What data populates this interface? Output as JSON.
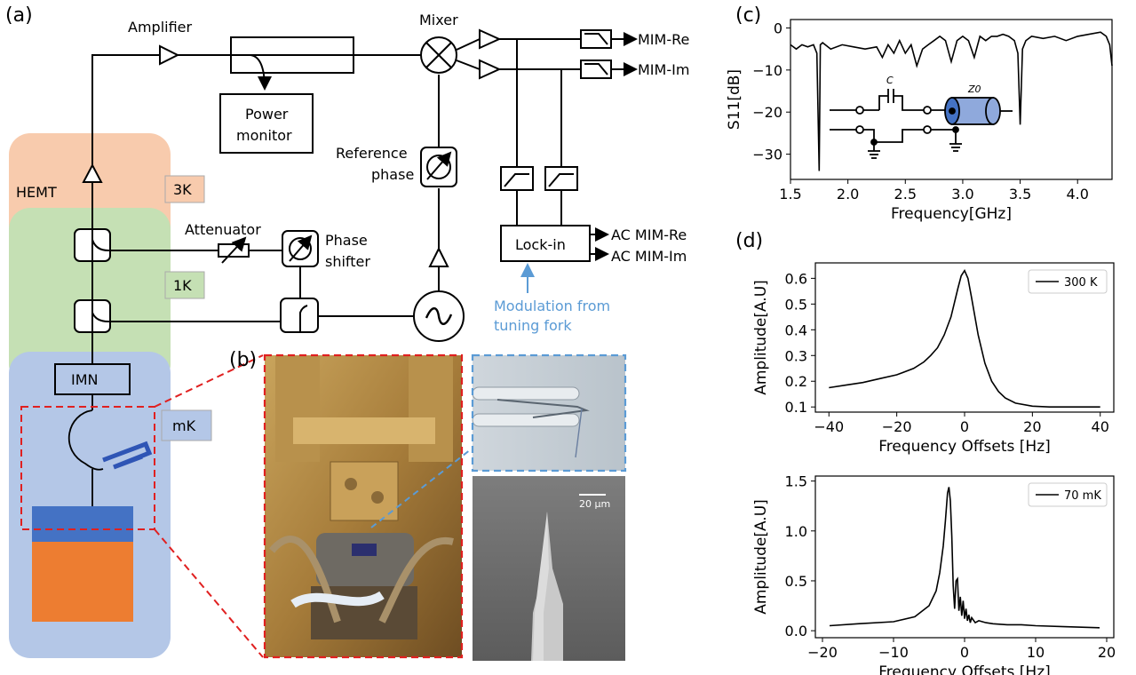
{
  "panels": {
    "a": "(a)",
    "b": "(b)",
    "c": "(c)",
    "d": "(d)"
  },
  "schematic": {
    "amplifier": "Amplifier",
    "mixer": "Mixer",
    "power_monitor_1": "Power",
    "power_monitor_2": "monitor",
    "reference_phase_1": "Reference",
    "reference_phase_2": "phase",
    "attenuator": "Attenuator",
    "phase_shifter_1": "Phase",
    "phase_shifter_2": "shifter",
    "lockin": "Lock-in",
    "modulation_1": "Modulation from",
    "modulation_2": "tuning fork",
    "hemt": "HEMT",
    "imn": "IMN",
    "out_re": "MIM-Re",
    "out_im": "MIM-Im",
    "ac_re": "AC MIM-Re",
    "ac_im": "AC MIM-Im",
    "temp_3k": "3K",
    "temp_1k": "1K",
    "temp_mk": "mK",
    "colors": {
      "stage_3k": "#f8cbad",
      "stage_1k": "#c5e0b4",
      "stage_mk": "#b4c7e7",
      "sample_top": "#4472c4",
      "sample_bottom": "#ed7d31",
      "red_dash": "#e02020",
      "blue_dash": "#5b9bd5"
    }
  },
  "photos": {
    "scale_bar": "20 μm"
  },
  "chart_data": [
    {
      "type": "line",
      "panel": "c",
      "xlabel": "Frequency[GHz]",
      "ylabel": "S11[dB]",
      "xlim": [
        1.5,
        4.3
      ],
      "ylim": [
        -36,
        2
      ],
      "xticks": [
        "1.5",
        "2.0",
        "2.5",
        "3.0",
        "3.5",
        "4.0"
      ],
      "yticks": [
        "0",
        "−10",
        "−20",
        "−30"
      ],
      "circuit_labels": {
        "c": "C",
        "z0": "Z0"
      },
      "series": [
        {
          "x": [
            1.5,
            1.55,
            1.6,
            1.65,
            1.7,
            1.73,
            1.75,
            1.76,
            1.78,
            1.85,
            1.95,
            2.05,
            2.15,
            2.25,
            2.3,
            2.35,
            2.4,
            2.45,
            2.5,
            2.55,
            2.6,
            2.65,
            2.7,
            2.75,
            2.8,
            2.85,
            2.9,
            2.95,
            3.0,
            3.05,
            3.1,
            3.15,
            3.2,
            3.25,
            3.3,
            3.35,
            3.4,
            3.45,
            3.48,
            3.5,
            3.52,
            3.55,
            3.6,
            3.7,
            3.8,
            3.9,
            4.0,
            4.1,
            4.2,
            4.25,
            4.28,
            4.3
          ],
          "y": [
            -4,
            -5,
            -4,
            -4.5,
            -4,
            -6,
            -34,
            -4,
            -3.5,
            -5,
            -4,
            -4.5,
            -5,
            -4.5,
            -7,
            -4,
            -6,
            -3,
            -6,
            -4,
            -9,
            -5,
            -4,
            -3,
            -2,
            -3,
            -8,
            -3,
            -2,
            -3,
            -7,
            -2,
            -3,
            -2,
            -2,
            -1.5,
            -2,
            -3,
            -6,
            -23,
            -5,
            -3,
            -2,
            -2.5,
            -2,
            -3,
            -2,
            -1.5,
            -1,
            -2,
            -4,
            -9
          ]
        }
      ]
    },
    {
      "type": "line",
      "panel": "d-top",
      "xlabel": "Frequency Offsets [Hz]",
      "ylabel": "Amplitude[A.U]",
      "xlim": [
        -44,
        44
      ],
      "ylim": [
        0.08,
        0.66
      ],
      "xticks": [
        "−40",
        "−20",
        "0",
        "20",
        "40"
      ],
      "yticks": [
        "0.1",
        "0.2",
        "0.3",
        "0.4",
        "0.5",
        "0.6"
      ],
      "legend": "300 K",
      "legend_position": "top-right",
      "series": [
        {
          "x": [
            -40,
            -35,
            -30,
            -25,
            -20,
            -15,
            -12,
            -10,
            -8,
            -6,
            -4,
            -2,
            -1,
            0,
            1,
            2,
            4,
            6,
            8,
            10,
            12,
            15,
            20,
            25,
            30,
            35,
            40
          ],
          "y": [
            0.175,
            0.185,
            0.195,
            0.21,
            0.225,
            0.25,
            0.275,
            0.3,
            0.33,
            0.38,
            0.45,
            0.56,
            0.61,
            0.63,
            0.6,
            0.53,
            0.38,
            0.27,
            0.2,
            0.16,
            0.135,
            0.115,
            0.103,
            0.1,
            0.1,
            0.1,
            0.1
          ]
        }
      ]
    },
    {
      "type": "line",
      "panel": "d-bottom",
      "xlabel": "Frequency Offsets [Hz]",
      "ylabel": "Amplitude[A.U]",
      "xlim": [
        -21,
        21
      ],
      "ylim": [
        -0.07,
        1.55
      ],
      "xticks": [
        "−20",
        "−10",
        "0",
        "10",
        "20"
      ],
      "yticks": [
        "0.0",
        "0.5",
        "1.0",
        "1.5"
      ],
      "legend": "70 mK",
      "legend_position": "top-right",
      "series": [
        {
          "x": [
            -19,
            -15,
            -10,
            -7,
            -5,
            -4,
            -3.5,
            -3,
            -2.7,
            -2.4,
            -2.2,
            -2.0,
            -1.8,
            -1.6,
            -1.4,
            -1.2,
            -1.0,
            -0.8,
            -0.6,
            -0.4,
            -0.2,
            0,
            0.2,
            0.4,
            0.6,
            0.8,
            1.0,
            1.5,
            2,
            3,
            4,
            6,
            8,
            10,
            14,
            19
          ],
          "y": [
            0.05,
            0.07,
            0.09,
            0.14,
            0.25,
            0.4,
            0.58,
            0.85,
            1.1,
            1.38,
            1.44,
            1.3,
            0.95,
            0.45,
            0.22,
            0.5,
            0.52,
            0.2,
            0.34,
            0.15,
            0.3,
            0.12,
            0.22,
            0.1,
            0.16,
            0.08,
            0.13,
            0.08,
            0.1,
            0.08,
            0.07,
            0.06,
            0.06,
            0.05,
            0.04,
            0.03
          ]
        }
      ]
    }
  ]
}
